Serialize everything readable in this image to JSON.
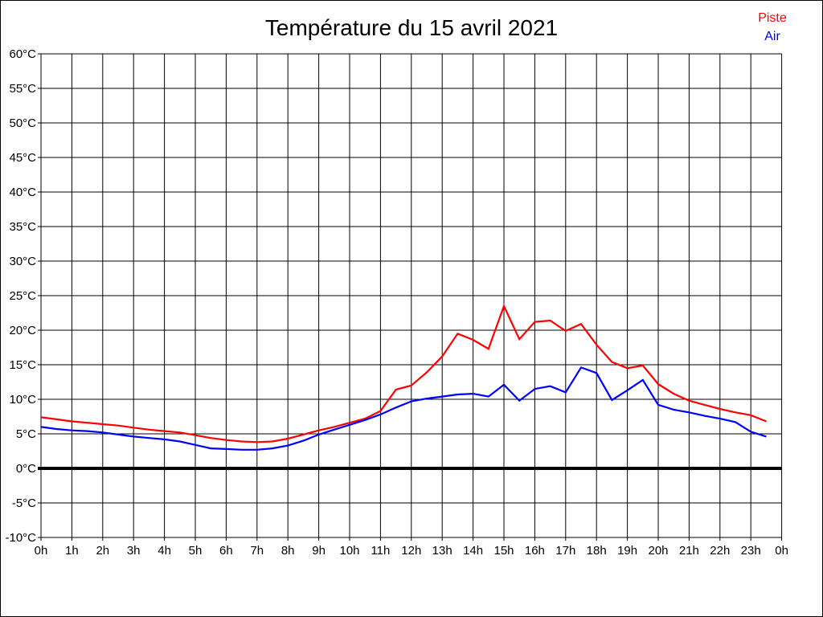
{
  "title": "Température du 15 avril 2021",
  "legend": {
    "items": [
      {
        "label": "Piste",
        "color": "#ff0000"
      },
      {
        "label": "Air",
        "color": "#0000ff"
      }
    ]
  },
  "chart_data": {
    "type": "line",
    "title": "Température du 15 avril 2021",
    "xlabel": "",
    "ylabel": "",
    "x_unit": "hours",
    "x_start": 0,
    "x_step": 0.5,
    "x_tick_labels": [
      "0h",
      "1h",
      "2h",
      "3h",
      "4h",
      "5h",
      "6h",
      "7h",
      "8h",
      "9h",
      "10h",
      "11h",
      "12h",
      "13h",
      "14h",
      "15h",
      "16h",
      "17h",
      "18h",
      "19h",
      "20h",
      "21h",
      "22h",
      "23h",
      "0h"
    ],
    "ylim": [
      -10,
      60
    ],
    "ytick_step": 5,
    "ytick_suffix": "°C",
    "grid": true,
    "grid_color": "#000000",
    "zero_line": {
      "value": 0,
      "thick": true,
      "color": "#000000"
    },
    "legend_position": "top-right",
    "series": [
      {
        "name": "Piste",
        "color": "#ff0000",
        "values": [
          7.4,
          7.1,
          6.8,
          6.6,
          6.4,
          6.2,
          5.9,
          5.6,
          5.4,
          5.2,
          4.8,
          4.4,
          4.1,
          3.9,
          3.8,
          3.9,
          4.3,
          4.9,
          5.5,
          6.0,
          6.6,
          7.2,
          8.3,
          11.4,
          12.0,
          13.9,
          16.2,
          19.5,
          18.6,
          17.3,
          23.5,
          18.7,
          21.2,
          21.4,
          19.9,
          20.9,
          17.9,
          15.4,
          14.5,
          14.9,
          12.2,
          10.8,
          9.8,
          9.2,
          8.6,
          8.1,
          7.7,
          6.8
        ]
      },
      {
        "name": "Air",
        "color": "#0000ff",
        "values": [
          6.0,
          5.7,
          5.5,
          5.4,
          5.2,
          4.9,
          4.6,
          4.4,
          4.2,
          3.9,
          3.4,
          2.9,
          2.8,
          2.7,
          2.7,
          2.9,
          3.3,
          4.0,
          4.9,
          5.6,
          6.3,
          7.0,
          7.8,
          8.8,
          9.7,
          10.1,
          10.4,
          10.7,
          10.8,
          10.4,
          12.1,
          9.8,
          11.5,
          11.9,
          11.0,
          14.6,
          13.8,
          9.9,
          11.3,
          12.8,
          9.2,
          8.5,
          8.1,
          7.6,
          7.2,
          6.7,
          5.3,
          4.6
        ]
      }
    ]
  }
}
